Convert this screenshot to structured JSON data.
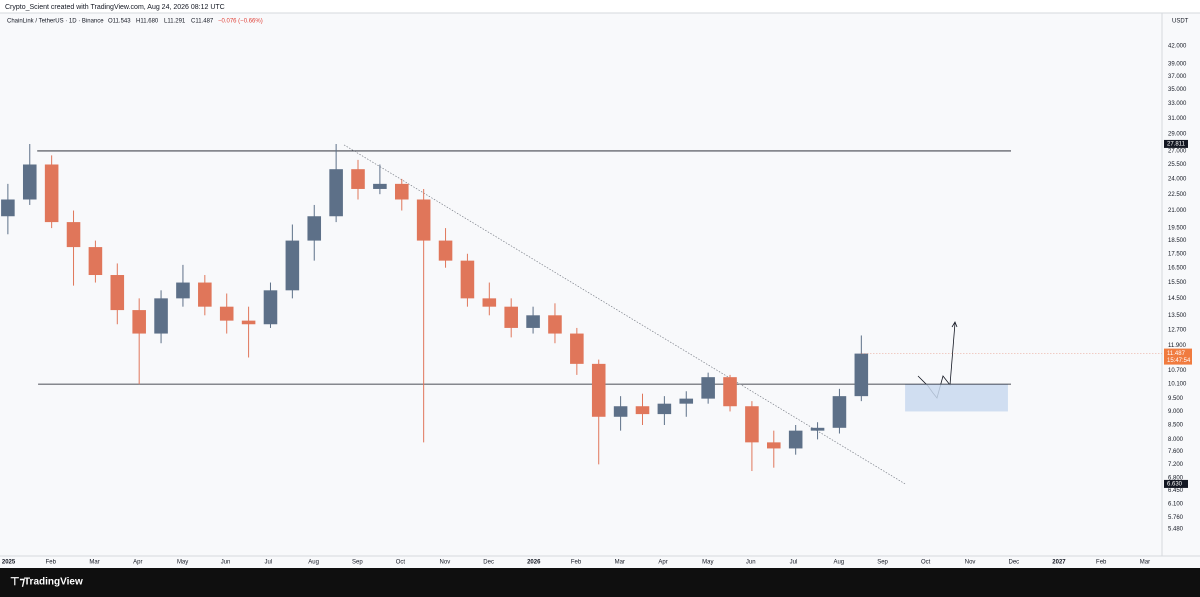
{
  "header": {
    "credit": "Crypto_Scient created with TradingView.com, Aug 24, 2026 08:12 UTC",
    "symbol": "ChainLink / TetherUS · 1D · Binance",
    "ohlc": [
      "O11.543",
      "H11.680",
      "L11.291",
      "C11.487"
    ],
    "change": "−0.076 (−0.66%)",
    "currency": "USDT"
  },
  "footer": {
    "logo": "TradingView"
  },
  "chart_data": {
    "type": "candlestick",
    "log_scale": true,
    "up_color": "#5d7088",
    "down_color": "#e0765a",
    "ylim": [
      5.06,
      47.9
    ],
    "yticks": [
      {
        "value": 42,
        "label": "42.000"
      },
      {
        "value": 39,
        "label": "39.000"
      },
      {
        "value": 37,
        "label": "37.000"
      },
      {
        "value": 35,
        "label": "35.000"
      },
      {
        "value": 33,
        "label": "33.000"
      },
      {
        "value": 31,
        "label": "31.000"
      },
      {
        "value": 29,
        "label": "29.000"
      },
      {
        "value": 27,
        "label": "27.000"
      },
      {
        "value": 25.5,
        "label": "25.500"
      },
      {
        "value": 24,
        "label": "24.000"
      },
      {
        "value": 22.5,
        "label": "22.500"
      },
      {
        "value": 21,
        "label": "21.000"
      },
      {
        "value": 19.5,
        "label": "19.500"
      },
      {
        "value": 18.5,
        "label": "18.500"
      },
      {
        "value": 17.5,
        "label": "17.500"
      },
      {
        "value": 16.5,
        "label": "16.500"
      },
      {
        "value": 15.5,
        "label": "15.500"
      },
      {
        "value": 14.5,
        "label": "14.500"
      },
      {
        "value": 13.5,
        "label": "13.500"
      },
      {
        "value": 12.7,
        "label": "12.700"
      },
      {
        "value": 11.9,
        "label": "11.900"
      },
      {
        "value": 10.7,
        "label": "10.700"
      },
      {
        "value": 10.1,
        "label": "10.100"
      },
      {
        "value": 9.5,
        "label": "9.500"
      },
      {
        "value": 9,
        "label": "9.000"
      },
      {
        "value": 8.5,
        "label": "8.500"
      },
      {
        "value": 8,
        "label": "8.000"
      },
      {
        "value": 7.6,
        "label": "7.600"
      },
      {
        "value": 7.2,
        "label": "7.200"
      },
      {
        "value": 6.8,
        "label": "6.800"
      },
      {
        "value": 6.45,
        "label": "6.450"
      },
      {
        "value": 6.1,
        "label": "6.100"
      },
      {
        "value": 5.76,
        "label": "5.760"
      },
      {
        "value": 5.48,
        "label": "5.480"
      }
    ],
    "xlim": [
      -0.18,
      26.37
    ],
    "xticks": [
      {
        "value": 0,
        "label": "2025"
      },
      {
        "value": 1,
        "label": "Feb"
      },
      {
        "value": 2,
        "label": "Mar"
      },
      {
        "value": 3,
        "label": "Apr"
      },
      {
        "value": 4,
        "label": "May"
      },
      {
        "value": 5,
        "label": "Jun"
      },
      {
        "value": 6,
        "label": "Jul"
      },
      {
        "value": 7,
        "label": "Aug"
      },
      {
        "value": 8,
        "label": "Sep"
      },
      {
        "value": 9,
        "label": "Oct"
      },
      {
        "value": 10,
        "label": "Nov"
      },
      {
        "value": 11,
        "label": "Dec"
      },
      {
        "value": 12,
        "label": "2026"
      },
      {
        "value": 13,
        "label": "Feb"
      },
      {
        "value": 14,
        "label": "Mar"
      },
      {
        "value": 15,
        "label": "Apr"
      },
      {
        "value": 16,
        "label": "May"
      },
      {
        "value": 17,
        "label": "Jun"
      },
      {
        "value": 18,
        "label": "Jul"
      },
      {
        "value": 19,
        "label": "Aug"
      },
      {
        "value": 20,
        "label": "Sep"
      },
      {
        "value": 21,
        "label": "Oct"
      },
      {
        "value": 22,
        "label": "Nov"
      },
      {
        "value": 23,
        "label": "Dec"
      },
      {
        "value": 24,
        "label": "2027"
      },
      {
        "value": 25,
        "label": "Feb"
      },
      {
        "value": 26,
        "label": "Mar"
      }
    ],
    "candles": {
      "x": [
        0,
        0.5,
        1,
        1.5,
        2,
        2.5,
        3,
        3.5,
        4,
        4.5,
        5,
        5.5,
        6,
        6.5,
        7,
        7.5,
        8,
        8.5,
        9,
        9.5,
        10,
        10.5,
        11,
        11.5,
        12,
        12.5,
        13,
        13.5,
        14,
        14.5,
        15,
        15.5,
        16,
        16.5,
        17,
        17.5,
        18,
        18.5,
        19,
        19.5
      ],
      "open": [
        20.5,
        22.0,
        25.5,
        20.0,
        18.0,
        16.0,
        13.8,
        12.5,
        14.5,
        15.5,
        14.0,
        13.2,
        13.0,
        15.0,
        18.5,
        20.5,
        25.0,
        23.0,
        23.5,
        22.0,
        18.5,
        17.0,
        14.5,
        14.0,
        12.8,
        13.5,
        12.5,
        11.0,
        8.8,
        9.2,
        8.9,
        9.3,
        9.5,
        10.4,
        9.2,
        7.9,
        7.7,
        8.3,
        8.4,
        9.6
      ],
      "high": [
        23.5,
        27.8,
        26.5,
        21.0,
        18.5,
        16.8,
        14.5,
        15.0,
        16.7,
        16.0,
        14.8,
        14.0,
        15.5,
        19.8,
        21.5,
        27.8,
        26.0,
        25.5,
        24.0,
        23.0,
        19.5,
        17.5,
        15.5,
        14.5,
        14.0,
        14.2,
        12.8,
        11.2,
        9.6,
        9.7,
        9.6,
        9.8,
        10.6,
        10.5,
        9.4,
        8.3,
        8.5,
        8.6,
        9.9,
        12.4
      ],
      "low": [
        19.0,
        21.5,
        19.5,
        15.3,
        15.5,
        13.0,
        10.1,
        12.0,
        14.0,
        13.5,
        12.5,
        11.3,
        12.8,
        14.5,
        17.0,
        20.0,
        22.0,
        22.5,
        21.0,
        7.9,
        16.5,
        14.0,
        13.5,
        12.3,
        12.5,
        12.0,
        10.5,
        7.2,
        8.3,
        8.5,
        8.5,
        8.8,
        9.3,
        9.0,
        7.0,
        7.1,
        7.5,
        8.0,
        8.2,
        9.4
      ],
      "close": [
        22.0,
        25.5,
        20.0,
        18.0,
        16.0,
        13.8,
        12.5,
        14.5,
        15.5,
        14.0,
        13.2,
        13.0,
        15.0,
        18.5,
        20.5,
        25.0,
        23.0,
        23.5,
        22.0,
        18.5,
        17.0,
        14.5,
        14.0,
        12.8,
        13.5,
        12.5,
        11.0,
        8.8,
        9.2,
        8.9,
        9.3,
        9.5,
        10.4,
        9.2,
        7.9,
        7.7,
        8.3,
        8.4,
        9.6,
        11.487
      ]
    },
    "levels": [
      {
        "price": 27,
        "from": 0.67,
        "to": 22.92
      },
      {
        "price": 10.1,
        "from": 0.69,
        "to": 22.92
      }
    ],
    "trendline": {
      "x": [
        7.68,
        20.5
      ],
      "price": [
        27.7,
        6.63
      ]
    },
    "zone": {
      "x": [
        20.5,
        22.85
      ],
      "price": [
        9.0,
        10.1
      ]
    },
    "price_flags": [
      {
        "value": 27.811,
        "label": "27.811"
      },
      {
        "value": 6.63,
        "label": "6.630"
      }
    ],
    "last_price_countdown": "15:47:54"
  }
}
